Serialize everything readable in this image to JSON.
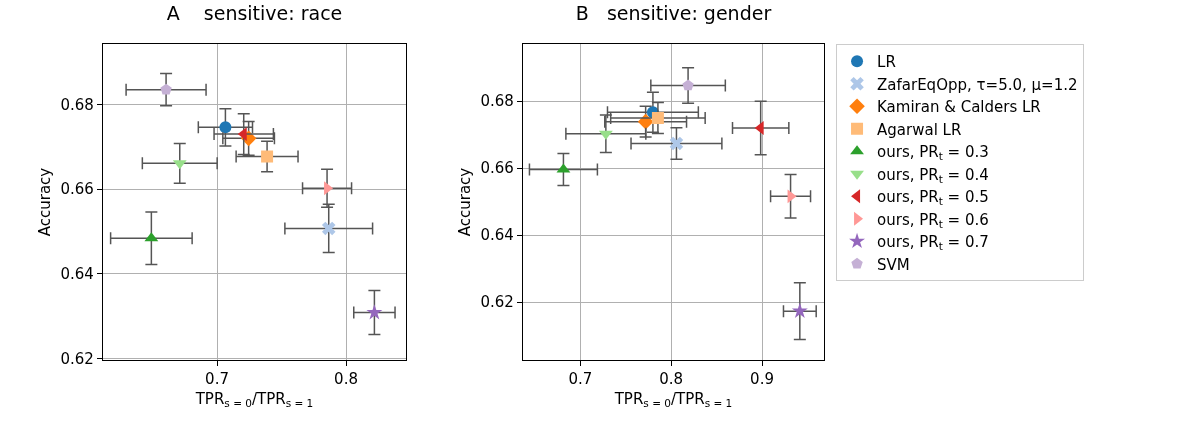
{
  "chart_data": [
    {
      "type": "scatter",
      "title": "A    sensitive: race",
      "xlabel": "TPR$_{s = 0}$/TPR$_{s = 1}$",
      "ylabel": "Accuracy",
      "xlim": [
        0.6116,
        0.8465
      ],
      "ylim": [
        0.6196,
        0.6943
      ],
      "xticks": [
        0.7,
        0.8
      ],
      "yticks": [
        0.62,
        0.64,
        0.66,
        0.68
      ],
      "grid": true,
      "series": [
        {
          "color": "#1f77b4",
          "marker": "circle",
          "x": [
            0.7065
          ],
          "values": [
            0.6746
          ],
          "errors": [
            0.0044
          ],
          "xerrors": [
            0.021
          ]
        },
        {
          "color": "#aec7e8",
          "marker": "cross",
          "x": [
            0.7866
          ],
          "values": [
            0.6507
          ],
          "errors": [
            0.0057
          ],
          "xerrors": [
            0.034
          ]
        },
        {
          "color": "#ff7f0e",
          "marker": "diamond",
          "x": [
            0.7245
          ],
          "values": [
            0.672
          ],
          "errors": [
            0.004
          ],
          "xerrors": [
            0.02
          ]
        },
        {
          "color": "#ffbb78",
          "marker": "square",
          "x": [
            0.7388
          ],
          "values": [
            0.6677
          ],
          "errors": [
            0.0036
          ],
          "xerrors": [
            0.024
          ]
        },
        {
          "color": "#2ca02c",
          "marker": "triangle-up",
          "x": [
            0.6491
          ],
          "values": [
            0.6484
          ],
          "errors": [
            0.0062
          ],
          "xerrors": [
            0.0316
          ]
        },
        {
          "color": "#98df8a",
          "marker": "triangle-down",
          "x": [
            0.6711
          ],
          "values": [
            0.6661
          ],
          "errors": [
            0.0047
          ],
          "xerrors": [
            0.029
          ]
        },
        {
          "color": "#d62728",
          "marker": "triangle-left",
          "x": [
            0.7207
          ],
          "values": [
            0.673
          ],
          "errors": [
            0.0048
          ],
          "xerrors": [
            0.023
          ]
        },
        {
          "color": "#ff9896",
          "marker": "triangle-right",
          "x": [
            0.7853
          ],
          "values": [
            0.6602
          ],
          "errors": [
            0.0045
          ],
          "xerrors": [
            0.019
          ]
        },
        {
          "color": "#9467bd",
          "marker": "star",
          "x": [
            0.822
          ],
          "values": [
            0.6308
          ],
          "errors": [
            0.0052
          ],
          "xerrors": [
            0.016
          ]
        },
        {
          "color": "#c5b0d5",
          "x": [
            0.6605
          ],
          "values": [
            0.6835
          ],
          "errors": [
            0.0038
          ],
          "xerrors": [
            0.031
          ]
        }
      ]
    },
    {
      "type": "scatter",
      "title": "B   sensitive: gender",
      "xlabel": "TPR$_{s = 0}$/TPR$_{s = 1}$",
      "ylabel": "Accuracy",
      "xlim": [
        0.6369,
        0.9682
      ],
      "ylim": [
        0.6027,
        0.6971
      ],
      "xticks": [
        0.7,
        0.8,
        0.9
      ],
      "yticks": [
        0.62,
        0.64,
        0.66,
        0.68
      ],
      "grid": true,
      "legend": "right",
      "series": [
        {
          "name": "LR",
          "color": "#1f77b4",
          "marker": "circle",
          "x": [
            0.7799
          ],
          "values": [
            0.6767
          ],
          "errors": [
            0.006
          ],
          "xerrors": [
            0.05
          ]
        },
        {
          "name": "ZafarEqOpp, τ=5.0, μ=1.2",
          "color": "#aec7e8",
          "marker": "cross",
          "x": [
            0.8058
          ],
          "values": [
            0.6674
          ],
          "errors": [
            0.0047
          ],
          "xerrors": [
            0.05
          ]
        },
        {
          "name": "Kamiran & Calders LR",
          "color": "#ff7f0e",
          "marker": "diamond",
          "x": [
            0.7719
          ],
          "values": [
            0.6739
          ],
          "errors": [
            0.0046
          ],
          "xerrors": [
            0.045
          ]
        },
        {
          "name": "Agarwal LR",
          "color": "#ffbb78",
          "marker": "square",
          "x": [
            0.7854
          ],
          "values": [
            0.675
          ],
          "errors": [
            0.0046
          ],
          "xerrors": [
            0.052
          ]
        },
        {
          "name": "ours, PR$_{t}$ = 0.3",
          "color": "#2ca02c",
          "marker": "triangle-up",
          "x": [
            0.6814
          ],
          "values": [
            0.6596
          ],
          "errors": [
            0.0048
          ],
          "xerrors": [
            0.0374
          ]
        },
        {
          "name": "ours, PR$_{t}$ = 0.4",
          "color": "#98df8a",
          "marker": "triangle-down",
          "x": [
            0.7281
          ],
          "values": [
            0.6703
          ],
          "errors": [
            0.0056
          ],
          "xerrors": [
            0.044
          ]
        },
        {
          "name": "ours, PR$_{t}$ = 0.5",
          "color": "#d62728",
          "marker": "triangle-left",
          "x": [
            0.8985
          ],
          "values": [
            0.672
          ],
          "errors": [
            0.008
          ],
          "xerrors": [
            0.031
          ]
        },
        {
          "name": "ours, PR$_{t}$ = 0.6",
          "color": "#ff9896",
          "marker": "triangle-right",
          "x": [
            0.9314
          ],
          "values": [
            0.6516
          ],
          "errors": [
            0.0065
          ],
          "xerrors": [
            0.022
          ]
        },
        {
          "name": "ours, PR$_{t}$ = 0.7",
          "color": "#9467bd",
          "marker": "star",
          "x": [
            0.9416
          ],
          "values": [
            0.6173
          ],
          "errors": [
            0.0085
          ],
          "xerrors": [
            0.018
          ]
        },
        {
          "name": "SVM",
          "color": "#c5b0d5",
          "x": [
            0.8186
          ],
          "values": [
            0.6847
          ],
          "errors": [
            0.0053
          ],
          "xerrors": [
            0.041
          ]
        }
      ]
    }
  ]
}
